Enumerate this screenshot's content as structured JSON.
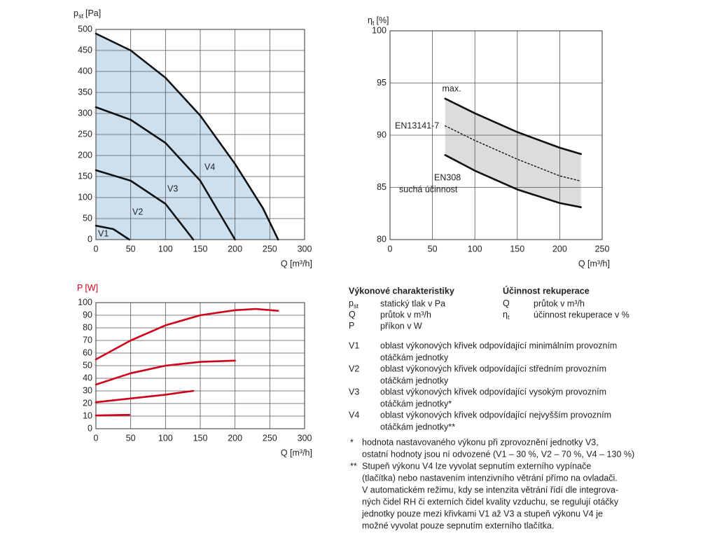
{
  "chart_data": [
    {
      "type": "line",
      "ylabel": {
        "symbol": "p",
        "subscript": "st",
        "unit": "[Pa]"
      },
      "xlabel": "Q [m³/h]",
      "xlim": [
        0,
        300
      ],
      "xticks": [
        0,
        50,
        100,
        150,
        200,
        250,
        300
      ],
      "ylim": [
        0,
        500
      ],
      "yticks": [
        0,
        50,
        100,
        150,
        200,
        250,
        300,
        350,
        400,
        450,
        500
      ],
      "grid": true,
      "axis_color": "#222222",
      "fill_under": {
        "series": 3,
        "color": "#cde0f0"
      },
      "series": [
        {
          "name": "V1",
          "color": "#111111",
          "x": [
            0,
            25,
            48
          ],
          "values": [
            33,
            25,
            0
          ]
        },
        {
          "name": "V2",
          "color": "#111111",
          "x": [
            0,
            50,
            100,
            140
          ],
          "values": [
            165,
            140,
            85,
            0
          ]
        },
        {
          "name": "V3",
          "color": "#111111",
          "x": [
            0,
            50,
            100,
            150,
            200
          ],
          "values": [
            315,
            285,
            230,
            140,
            0
          ]
        },
        {
          "name": "V4",
          "color": "#111111",
          "x": [
            0,
            50,
            100,
            150,
            200,
            240,
            262
          ],
          "values": [
            490,
            450,
            385,
            295,
            180,
            75,
            0
          ]
        }
      ]
    },
    {
      "type": "line",
      "ylabel": {
        "symbol": "η",
        "subscript": "t",
        "unit": "[%]"
      },
      "xlabel": "Q [m³/h]",
      "xlim": [
        0,
        250
      ],
      "xticks": [
        0,
        50,
        100,
        150,
        200,
        250
      ],
      "ylim": [
        80,
        100
      ],
      "yticks": [
        80,
        85,
        90,
        95,
        100
      ],
      "grid": true,
      "axis_color": "#222222",
      "band": {
        "between": [
          0,
          2
        ],
        "color": "#dcdcdc"
      },
      "annotations": [
        "suchá účinnost"
      ],
      "series": [
        {
          "name": "max.",
          "color": "#111111",
          "style": "solid",
          "x": [
            65,
            100,
            150,
            200,
            225
          ],
          "values": [
            93.5,
            92.1,
            90.3,
            88.8,
            88.2
          ]
        },
        {
          "name": "EN13141-7",
          "color": "#111111",
          "style": "dotted",
          "x": [
            65,
            100,
            150,
            200,
            225
          ],
          "values": [
            90.9,
            89.5,
            87.7,
            86.1,
            85.6
          ]
        },
        {
          "name": "EN308",
          "color": "#111111",
          "style": "solid",
          "x": [
            65,
            100,
            150,
            200,
            225
          ],
          "values": [
            88.1,
            86.6,
            84.8,
            83.5,
            83.1
          ]
        }
      ]
    },
    {
      "type": "line",
      "ylabel": {
        "symbol": "P",
        "unit": "[W]"
      },
      "xlabel": "Q [m³/h]",
      "xlim": [
        0,
        300
      ],
      "xticks": [
        0,
        50,
        100,
        150,
        200,
        250,
        300
      ],
      "ylim": [
        0,
        100
      ],
      "yticks": [
        0,
        10,
        20,
        30,
        40,
        50,
        60,
        70,
        80,
        90,
        100
      ],
      "grid": true,
      "axis_color": "#d0021b",
      "series": [
        {
          "color": "#d0021b",
          "x": [
            0,
            48
          ],
          "values": [
            10.5,
            11
          ]
        },
        {
          "color": "#d0021b",
          "x": [
            0,
            50,
            100,
            140
          ],
          "values": [
            21,
            24,
            27,
            30
          ]
        },
        {
          "color": "#d0021b",
          "x": [
            0,
            50,
            100,
            150,
            200
          ],
          "values": [
            35,
            44,
            50,
            53,
            54
          ]
        },
        {
          "color": "#d0021b",
          "x": [
            0,
            50,
            100,
            150,
            200,
            230,
            262
          ],
          "values": [
            55,
            70,
            82,
            90,
            94,
            95,
            93.5
          ]
        }
      ]
    }
  ],
  "legend": {
    "title_left": "Výkonové charakteristiky",
    "title_right": "Účinnost rekuperace",
    "symbols_left": [
      {
        "symbol": "p",
        "subscript": "st",
        "text": "statický tlak v Pa"
      },
      {
        "symbol": "Q",
        "text": "průtok v m³/h"
      },
      {
        "symbol": "P",
        "text": "příkon v W"
      }
    ],
    "symbols_right": [
      {
        "symbol": "Q",
        "text": "průtok v m³/h"
      },
      {
        "symbol": "η",
        "subscript": "t",
        "text": "účinnost rekuperace v %"
      }
    ],
    "definitions": [
      {
        "symbol": "V1",
        "lines": [
          "oblast výkonových křivek odpovídající minimálním provozním",
          "otáčkám jednotky"
        ]
      },
      {
        "symbol": "V2",
        "lines": [
          "oblast výkonových křivek odpovídající středním provozním",
          "otáčkám jednotky"
        ]
      },
      {
        "symbol": "V3",
        "lines": [
          "oblast výkonových křivek odpovídající vysokým provozním",
          "otáčkám jednotky*"
        ]
      },
      {
        "symbol": "V4",
        "lines": [
          "oblast výkonových křivek odpovídající nejvyšším provozním",
          "otáčkám jednotky**"
        ]
      }
    ],
    "footnotes": [
      {
        "marker": "*",
        "lines": [
          "hodnota nastavovaného výkonu při zprovoznění jednotky V3,",
          "ostatní hodnoty jsou ní odvozené (V1 – 30 %, V2 – 70 %, V4 – 130 %)"
        ]
      },
      {
        "marker": "**",
        "lines": [
          "Stupeň výkonu V4 lze vyvolat sepnutím externího vypínače",
          "(tlačítka) nebo nastavením intenzivního větrání přímo na ovladači.",
          "V automatickém režimu, kdy se intenzita větrání řídí dle integrova-",
          "ných čidel RH či externích čidel kvality vzduchu, se regulují otáčky",
          "jednotky pouze mezi křivkami V1 až V3 a stupeň výkonu V4 je",
          "možné vyvolat pouze sepnutím externího tlačítka."
        ]
      }
    ]
  }
}
